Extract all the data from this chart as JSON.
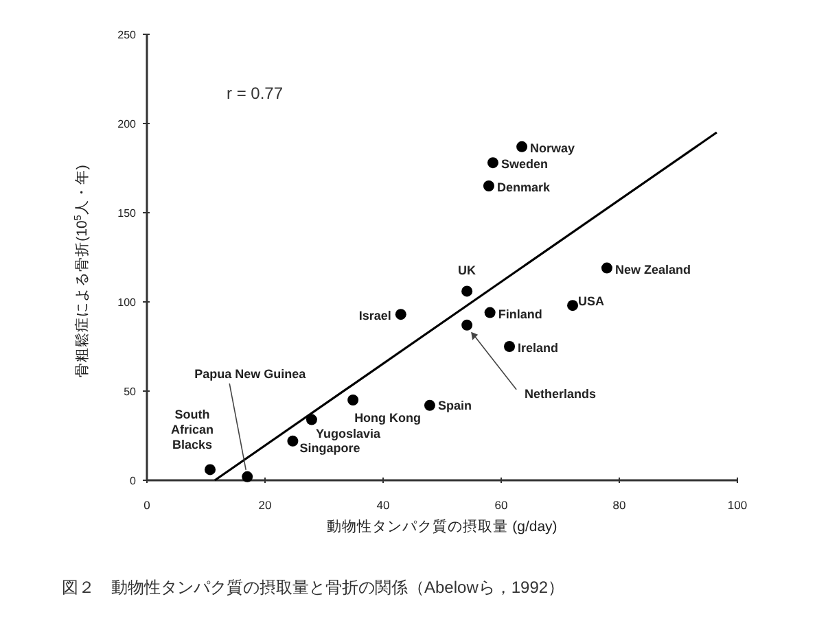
{
  "chart_data": {
    "type": "scatter",
    "xlabel": "動物性タンパク質の摂取量 (g/day)",
    "ylabel": "骨粗鬆症による骨折(10$^{5}$人・年)",
    "xlim": [
      0,
      100
    ],
    "ylim": [
      0,
      250
    ],
    "xticks": [
      0,
      20,
      40,
      60,
      80,
      100
    ],
    "yticks": [
      0,
      50,
      100,
      150,
      200,
      250
    ],
    "grid": false,
    "series": [
      {
        "type": "scatter",
        "marker": "circle",
        "color": "#000000",
        "x": [
          63.5,
          58.6,
          57.9,
          54.2,
          54.2,
          58.1,
          72.1,
          77.9,
          61.4,
          43.0,
          47.9,
          34.9,
          27.9,
          24.7,
          10.7,
          17.0
        ],
        "values": [
          187,
          178,
          165,
          106,
          87,
          94,
          98,
          119,
          75,
          93,
          42,
          45,
          34,
          22,
          6,
          2
        ]
      },
      {
        "type": "line",
        "marker": "none",
        "color": "#000000",
        "x": [
          11.5,
          96.5
        ],
        "values": [
          0,
          195
        ]
      }
    ],
    "annotations": [
      "r = 0.77",
      "図２　動物性タンパク質の摂取量と骨折の関係（Abelowら，1992）",
      {
        "text": "Norway",
        "x": 63.5,
        "y": 187
      },
      {
        "text": "Sweden",
        "x": 58.6,
        "y": 178
      },
      {
        "text": "Denmark",
        "x": 57.9,
        "y": 165
      },
      {
        "text": "UK",
        "x": 54.2,
        "y": 106
      },
      {
        "text": "Netherlands",
        "x": 54.2,
        "y": 87
      },
      {
        "text": "Finland",
        "x": 58.1,
        "y": 94
      },
      {
        "text": "USA",
        "x": 72.1,
        "y": 98
      },
      {
        "text": "New Zealand",
        "x": 77.9,
        "y": 119
      },
      {
        "text": "Ireland",
        "x": 61.4,
        "y": 75
      },
      {
        "text": "Israel",
        "x": 43.0,
        "y": 93
      },
      {
        "text": "Spain",
        "x": 47.9,
        "y": 42
      },
      {
        "text": "Hong Kong",
        "x": 34.9,
        "y": 45
      },
      {
        "text": "Yugoslavia",
        "x": 27.9,
        "y": 34
      },
      {
        "text": "Singapore",
        "x": 24.7,
        "y": 22
      },
      {
        "text": "South African Blacks",
        "x": 10.7,
        "y": 6
      },
      {
        "text": "Papua New Guinea",
        "x": 17.0,
        "y": 2
      }
    ]
  }
}
